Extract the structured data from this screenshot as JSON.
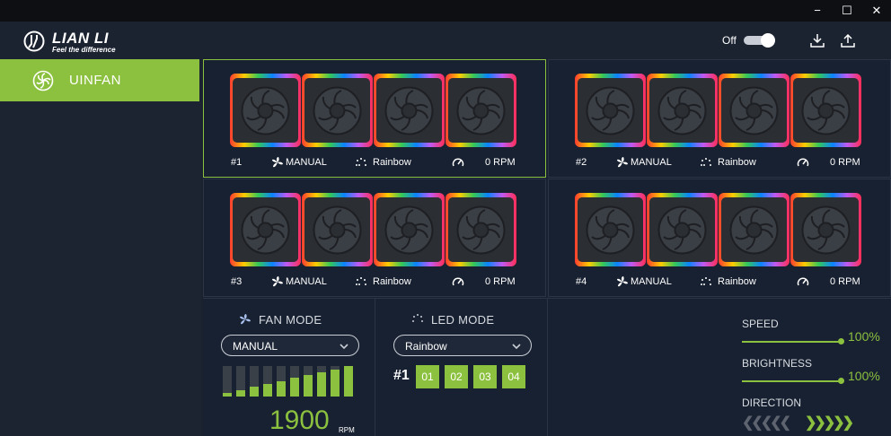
{
  "window": {
    "minimize": "−",
    "maximize": "☐",
    "close": "✕"
  },
  "header": {
    "brand": "LIAN LI",
    "tagline": "Feel the difference",
    "power_label": "Off",
    "power_on": true,
    "download_icon": "download-icon",
    "upload_icon": "upload-icon"
  },
  "sidebar": {
    "items": [
      {
        "label": "UINFAN",
        "icon": "fan-icon",
        "active": true
      }
    ]
  },
  "panels": [
    {
      "id": "#1",
      "mode": "MANUAL",
      "led": "Rainbow",
      "rpm": "0 RPM",
      "active": true
    },
    {
      "id": "#2",
      "mode": "MANUAL",
      "led": "Rainbow",
      "rpm": "0 RPM",
      "active": false
    },
    {
      "id": "#3",
      "mode": "MANUAL",
      "led": "Rainbow",
      "rpm": "0 RPM",
      "active": false
    },
    {
      "id": "#4",
      "mode": "MANUAL",
      "led": "Rainbow",
      "rpm": "0 RPM",
      "active": false
    }
  ],
  "fan_mode": {
    "title": "FAN MODE",
    "selected": "MANUAL",
    "rpm_value": "1900",
    "rpm_unit": "RPM",
    "level_bars": 10,
    "level_active": 10
  },
  "led_mode": {
    "title": "LED MODE",
    "selected": "Rainbow",
    "channel_label": "#1",
    "channels": [
      "01",
      "02",
      "03",
      "04"
    ]
  },
  "controls": {
    "speed": {
      "label": "SPEED",
      "value": "100%",
      "level": 1.0
    },
    "brightness": {
      "label": "BRIGHTNESS",
      "value": "100%",
      "level": 1.0
    },
    "direction": {
      "label": "DIRECTION",
      "selected": "right"
    }
  },
  "colors": {
    "accent": "#8cc13f",
    "background": "#182131",
    "sidebar": "#1c2432"
  }
}
